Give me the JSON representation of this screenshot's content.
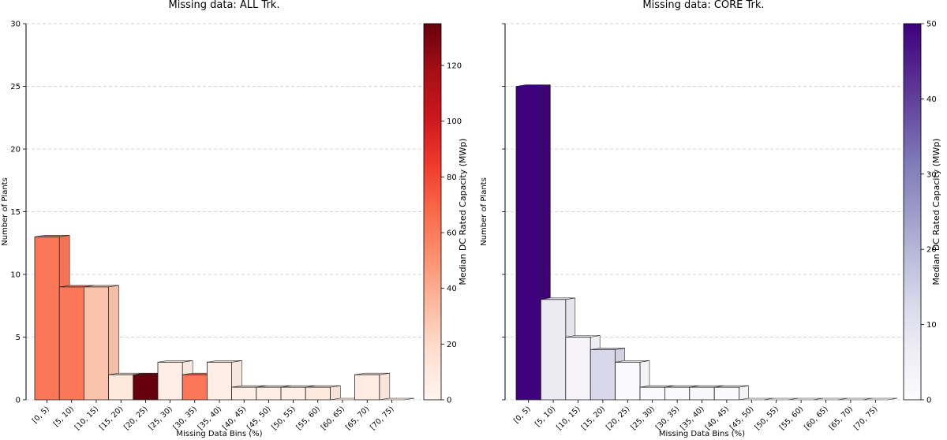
{
  "chart_data": [
    {
      "type": "bar",
      "title": "Missing data: ALL Trk.",
      "xlabel": "Missing Data Bins (%)",
      "ylabel": "Number of Plants",
      "ylim": [
        0,
        30
      ],
      "yticks": [
        0,
        5,
        10,
        15,
        20,
        25,
        30
      ],
      "grid": "horizontal dashed",
      "categories": [
        "[0, 5)",
        "[5, 10)",
        "[10, 15)",
        "[15, 20)",
        "[20, 25)",
        "[25, 30)",
        "[30, 35)",
        "[35, 40)",
        "[40, 45)",
        "[45, 50)",
        "[50, 55)",
        "[55, 60)",
        "[60, 65)",
        "[65, 70)",
        "[70, 75)"
      ],
      "values": [
        13,
        9,
        9,
        2,
        2,
        3,
        2,
        3,
        1,
        1,
        1,
        1,
        0,
        2,
        0
      ],
      "color_values": [
        62,
        62,
        30,
        10,
        135,
        6,
        62,
        6,
        6,
        6,
        6,
        10,
        6,
        8,
        8
      ],
      "colorbar": {
        "label": "Median DC Rated Capacity (MWp)",
        "range": [
          0,
          135
        ],
        "ticks": [
          0,
          20,
          40,
          60,
          80,
          100,
          120
        ],
        "colormap": "Reds",
        "stops": [
          "#fff5f0",
          "#fee0d2",
          "#fcbba1",
          "#fc9272",
          "#fb6a4a",
          "#ef3b2c",
          "#cb181d",
          "#a50f15",
          "#67000d"
        ]
      }
    },
    {
      "type": "bar",
      "title": "Missing data: CORE Trk.",
      "xlabel": "Missing Data Bins (%)",
      "ylabel": "Number of Plants",
      "ylim": [
        0,
        30
      ],
      "yticks": [
        0,
        5,
        10,
        15,
        20,
        25,
        30
      ],
      "grid": "horizontal dashed",
      "categories": [
        "[0, 5)",
        "[5, 10)",
        "[10, 15)",
        "[15, 20)",
        "[20, 25)",
        "[25, 30)",
        "[30, 35)",
        "[35, 40)",
        "[40, 45)",
        "[45, 50)",
        "[50, 55)",
        "[55, 60)",
        "[60, 65)",
        "[65, 70)",
        "[70, 75)"
      ],
      "values": [
        25,
        8,
        5,
        4,
        3,
        1,
        1,
        1,
        1,
        0,
        0,
        0,
        0,
        0,
        0
      ],
      "color_values": [
        50,
        7,
        3,
        13,
        1,
        1,
        1,
        2,
        1,
        1,
        1,
        1,
        1,
        1,
        1
      ],
      "colorbar": {
        "label": "Median DC Rated Capacity (MWp)",
        "range": [
          0,
          50
        ],
        "ticks": [
          0,
          10,
          20,
          30,
          40,
          50
        ],
        "colormap": "Purples",
        "stops": [
          "#fcfbfd",
          "#efedf5",
          "#dadaeb",
          "#bcbddc",
          "#9e9ac8",
          "#807dba",
          "#6a51a3",
          "#54278f",
          "#3f007d"
        ]
      }
    }
  ]
}
